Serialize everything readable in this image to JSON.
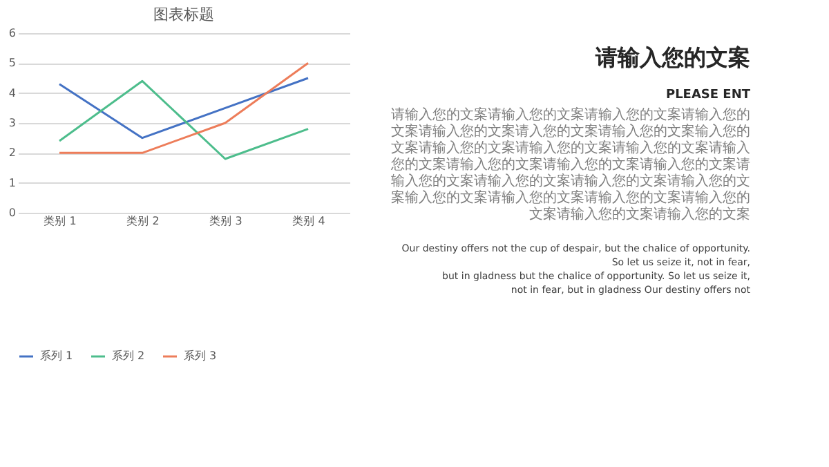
{
  "chart_data": {
    "type": "line",
    "title": "图表标题",
    "categories": [
      "类别 1",
      "类别 2",
      "类别 3",
      "类别 4"
    ],
    "series": [
      {
        "name": "系列 1",
        "color": "#4472c4",
        "values": [
          4.3,
          2.5,
          3.5,
          4.5
        ]
      },
      {
        "name": "系列 2",
        "color": "#4dbd8c",
        "values": [
          2.4,
          4.4,
          1.8,
          2.8
        ]
      },
      {
        "name": "系列 3",
        "color": "#ed7d5a",
        "values": [
          2,
          2,
          3,
          5
        ]
      }
    ],
    "ylim": [
      0,
      6
    ],
    "yticks": [
      0,
      1,
      2,
      3,
      4,
      5,
      6
    ],
    "grid": "y",
    "legend": "bottom",
    "marker": "none",
    "line_style": "solid",
    "annotations": [
      "请输入您的文案",
      "PLEASE ENT",
      "请输入您的文案请输入您的文案请输入您的文案请输入您的文案请输入您的文案请入您的文案请输入您的文案输入您的文案请输入您的文案请输入您的文案请输入您的文案请输入",
      "您的文案请输入您的文案请输入您的文案请输入您的文案请输入您的文案请输入您的文案请输入您的文案请输入您的文案输入您的文案请输入您的文案请输入您的文案请输入您的文案请输入您的文案请输入您的文案",
      "Our destiny offers not the cup of despair, but the chalice of opportunity.",
      "So let us seize it, not in fear,",
      "but in gladness but the chalice of opportunity. So let us seize it,",
      "not in fear, but in gladness Our destiny offers not"
    ]
  }
}
